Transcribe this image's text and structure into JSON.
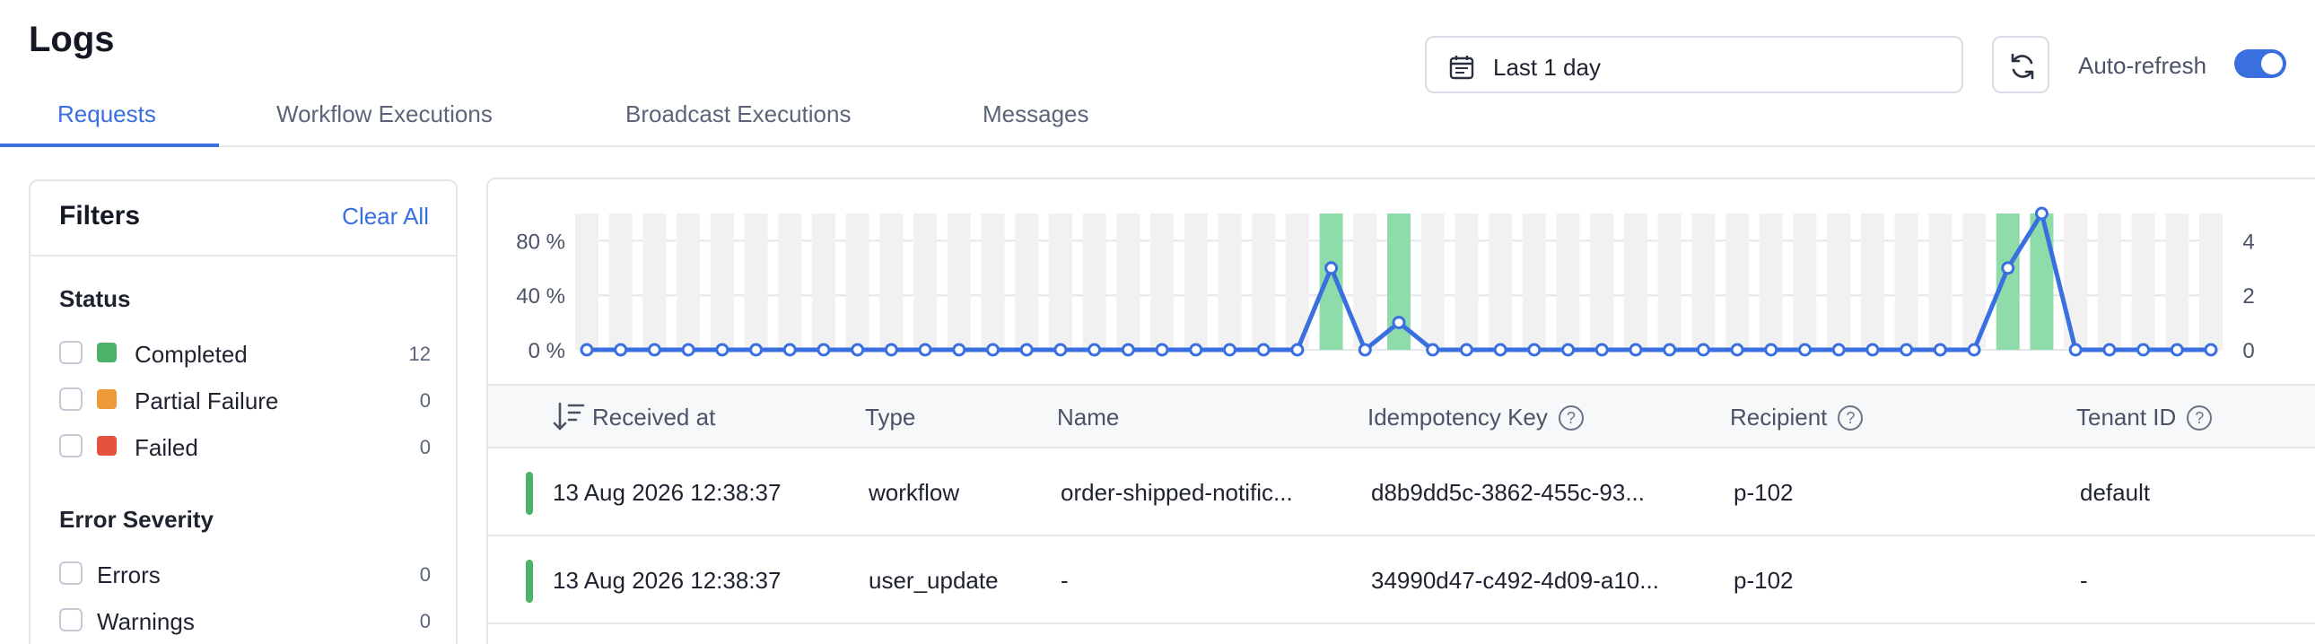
{
  "page": {
    "title": "Logs"
  },
  "tabs": [
    {
      "label": "Requests",
      "active": true
    },
    {
      "label": "Workflow Executions",
      "active": false
    },
    {
      "label": "Broadcast Executions",
      "active": false
    },
    {
      "label": "Messages",
      "active": false
    }
  ],
  "toolbar": {
    "date_range": "Last 1 day",
    "auto_refresh_label": "Auto-refresh",
    "auto_refresh_on": true
  },
  "filters": {
    "title": "Filters",
    "clear_all": "Clear All",
    "status": {
      "title": "Status",
      "items": [
        {
          "label": "Completed",
          "count": "12",
          "color": "#4cb26a"
        },
        {
          "label": "Partial Failure",
          "count": "0",
          "color": "#ee9a3a"
        },
        {
          "label": "Failed",
          "count": "0",
          "color": "#e5533f"
        }
      ]
    },
    "error_severity": {
      "title": "Error Severity",
      "items": [
        {
          "label": "Errors",
          "count": "0"
        },
        {
          "label": "Warnings",
          "count": "0"
        }
      ]
    }
  },
  "chart_data": {
    "type": "bar",
    "left_axis_ticks": [
      "0 %",
      "40 %",
      "80 %"
    ],
    "right_axis_ticks": [
      "0",
      "2",
      "4"
    ],
    "left_ylim": [
      0,
      100
    ],
    "right_ylim": [
      0,
      5
    ],
    "bar_values": [
      0,
      0,
      0,
      0,
      0,
      0,
      0,
      0,
      0,
      0,
      0,
      0,
      0,
      0,
      0,
      0,
      0,
      0,
      0,
      0,
      0,
      0,
      100,
      0,
      100,
      0,
      0,
      0,
      0,
      0,
      0,
      0,
      0,
      0,
      0,
      0,
      0,
      0,
      0,
      0,
      0,
      0,
      100,
      100,
      0,
      0,
      0,
      0,
      0
    ],
    "line_values": [
      0,
      0,
      0,
      0,
      0,
      0,
      0,
      0,
      0,
      0,
      0,
      0,
      0,
      0,
      0,
      0,
      0,
      0,
      0,
      0,
      0,
      0,
      3,
      0,
      1,
      0,
      0,
      0,
      0,
      0,
      0,
      0,
      0,
      0,
      0,
      0,
      0,
      0,
      0,
      0,
      0,
      0,
      3,
      5,
      0,
      0,
      0,
      0,
      0
    ],
    "colors": {
      "bar": "#8fdcab",
      "line": "#3a6fe0",
      "placeholder": "#f1f1f1"
    },
    "grid": true
  },
  "table": {
    "columns": [
      "Received at",
      "Type",
      "Name",
      "Idempotency Key",
      "Recipient",
      "Tenant ID"
    ],
    "rows": [
      {
        "received_at": "13 Aug 2026 12:38:37",
        "type": "workflow",
        "name": "order-shipped-notific...",
        "idempotency_key": "d8b9dd5c-3862-455c-93...",
        "recipient": "p-102",
        "tenant_id": "default"
      },
      {
        "received_at": "13 Aug 2026 12:38:37",
        "type": "user_update",
        "name": "-",
        "idempotency_key": "34990d47-c492-4d09-a10...",
        "recipient": "p-102",
        "tenant_id": "-"
      }
    ]
  }
}
